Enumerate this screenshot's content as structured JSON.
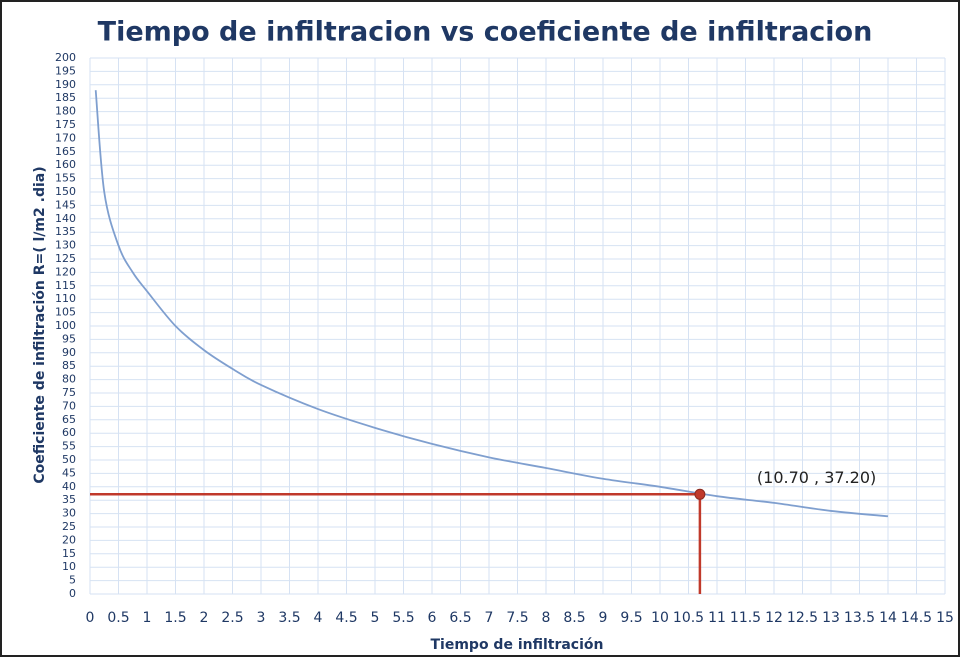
{
  "chart_data": {
    "type": "line",
    "title": "Tiempo de infiltracion vs coeficiente de infiltracion",
    "x_label": "Tiempo de infiltración",
    "y_label": "Coeficiente de infiltración R=( l/m2 .dia)",
    "x": [
      0.1,
      0.25,
      0.5,
      0.75,
      1,
      1.5,
      2,
      2.5,
      3,
      4,
      5,
      6,
      7,
      8,
      9,
      10,
      11,
      12,
      13,
      14
    ],
    "series": [
      {
        "color": "#7f9fcf",
        "values": [
          188,
          150,
          130,
          120,
          113,
          100,
          91,
          84,
          78,
          69,
          62,
          56,
          51,
          47,
          43,
          40,
          36.5,
          34,
          31,
          29
        ]
      }
    ],
    "xlim": [
      0,
      15
    ],
    "ylim": [
      0,
      200
    ],
    "xticks": [
      0,
      0.5,
      1,
      1.5,
      2,
      2.5,
      3,
      3.5,
      4,
      4.5,
      5,
      5.5,
      6,
      6.5,
      7,
      7.5,
      8,
      8.5,
      9,
      9.5,
      10,
      10.5,
      11,
      11.5,
      12,
      12.5,
      13,
      13.5,
      14,
      14.5,
      15
    ],
    "yticks": [
      0,
      5,
      10,
      15,
      20,
      25,
      30,
      35,
      40,
      45,
      50,
      55,
      60,
      65,
      70,
      75,
      80,
      85,
      90,
      95,
      100,
      105,
      110,
      115,
      120,
      125,
      130,
      135,
      140,
      145,
      150,
      155,
      160,
      165,
      170,
      175,
      180,
      185,
      190,
      195,
      200
    ],
    "grid": true,
    "highlight": {
      "x": 10.7,
      "y": 37.2,
      "label": "(10.70 , 37.20)",
      "color": "#c0392b"
    }
  }
}
